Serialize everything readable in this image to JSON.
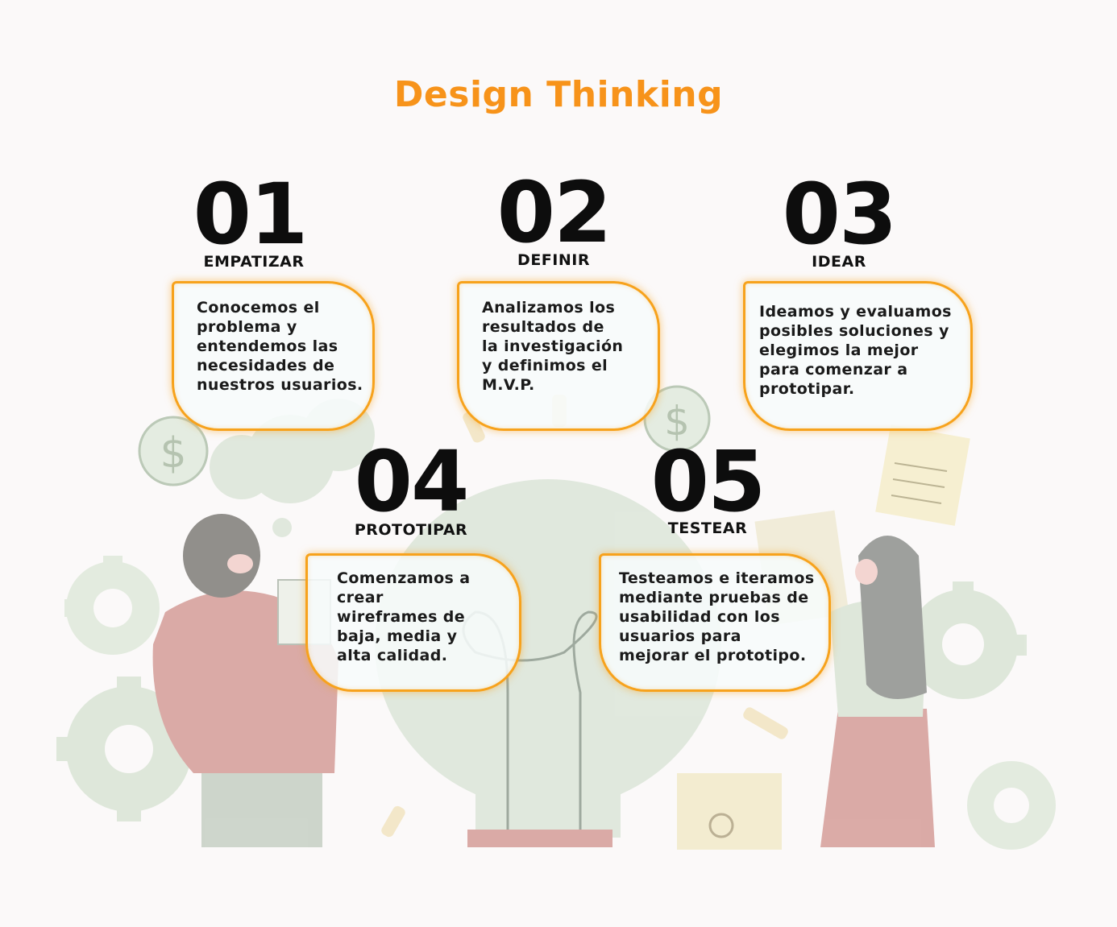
{
  "title": "Design Thinking",
  "steps": [
    {
      "number": "01",
      "label": "EMPATIZAR",
      "text": "Conocemos el\nproblema y\nentendemos las\nnecesidades de\nnuestros usuarios."
    },
    {
      "number": "02",
      "label": "DEFINIR",
      "text": "Analizamos los\nresultados de\nla investigación\ny definimos el\nM.V.P."
    },
    {
      "number": "03",
      "label": "IDEAR",
      "text": "Ideamos y evaluamos\nposibles soluciones y\nelegimos la mejor\npara comenzar a\nprototipar."
    },
    {
      "number": "04",
      "label": "PROTOTIPAR",
      "text": "Comenzamos a\ncrear\nwireframes de\nbaja, media y\nalta calidad."
    },
    {
      "number": "05",
      "label": "TESTEAR",
      "text": "Testeamos e iteramos\nmediante pruebas de\nusabilidad con los\nusuarios para\nmejorar el prototipo."
    }
  ],
  "colors": {
    "accent": "#f7931a",
    "card_border": "#f7a21c",
    "number": "#0d0d0d",
    "illustration_green": "#d7e4d3",
    "illustration_red": "#d99a95"
  }
}
